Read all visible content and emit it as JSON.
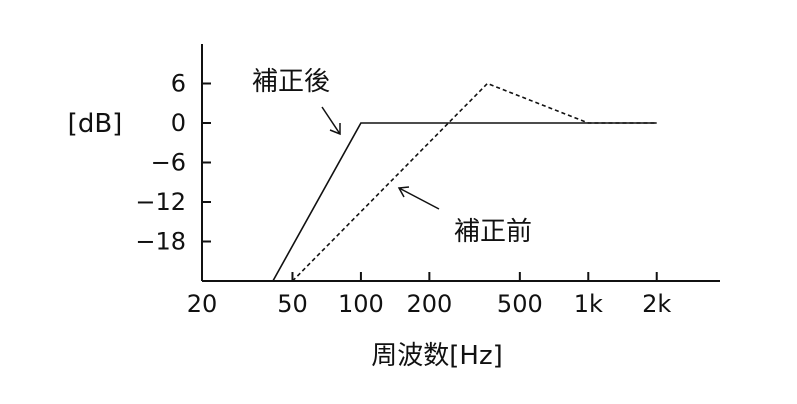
{
  "chart_data": {
    "type": "line",
    "title": "",
    "xlabel": "周波数[Hz]",
    "ylabel": "[dB]",
    "x_scale": "log",
    "x_ticks": [
      {
        "value": 20,
        "label": "20"
      },
      {
        "value": 50,
        "label": "50"
      },
      {
        "value": 100,
        "label": "100"
      },
      {
        "value": 200,
        "label": "200"
      },
      {
        "value": 500,
        "label": "500"
      },
      {
        "value": 1000,
        "label": "1k"
      },
      {
        "value": 2000,
        "label": "2k"
      }
    ],
    "y_ticks": [
      {
        "value": 6,
        "label": "6"
      },
      {
        "value": 0,
        "label": "0"
      },
      {
        "value": -6,
        "label": "−6"
      },
      {
        "value": -12,
        "label": "−12"
      },
      {
        "value": -18,
        "label": "−18"
      }
    ],
    "xlim": [
      20,
      3100
    ],
    "ylim": [
      -24,
      12
    ],
    "series": [
      {
        "name": "補正後",
        "style": "solid",
        "color": "#111111",
        "x": [
          41,
          100,
          2000
        ],
        "y": [
          -24,
          0,
          0
        ]
      },
      {
        "name": "補正前",
        "style": "dashed",
        "color": "#111111",
        "x": [
          50,
          360,
          1000,
          2000
        ],
        "y": [
          -24,
          6,
          0,
          0
        ]
      }
    ]
  }
}
